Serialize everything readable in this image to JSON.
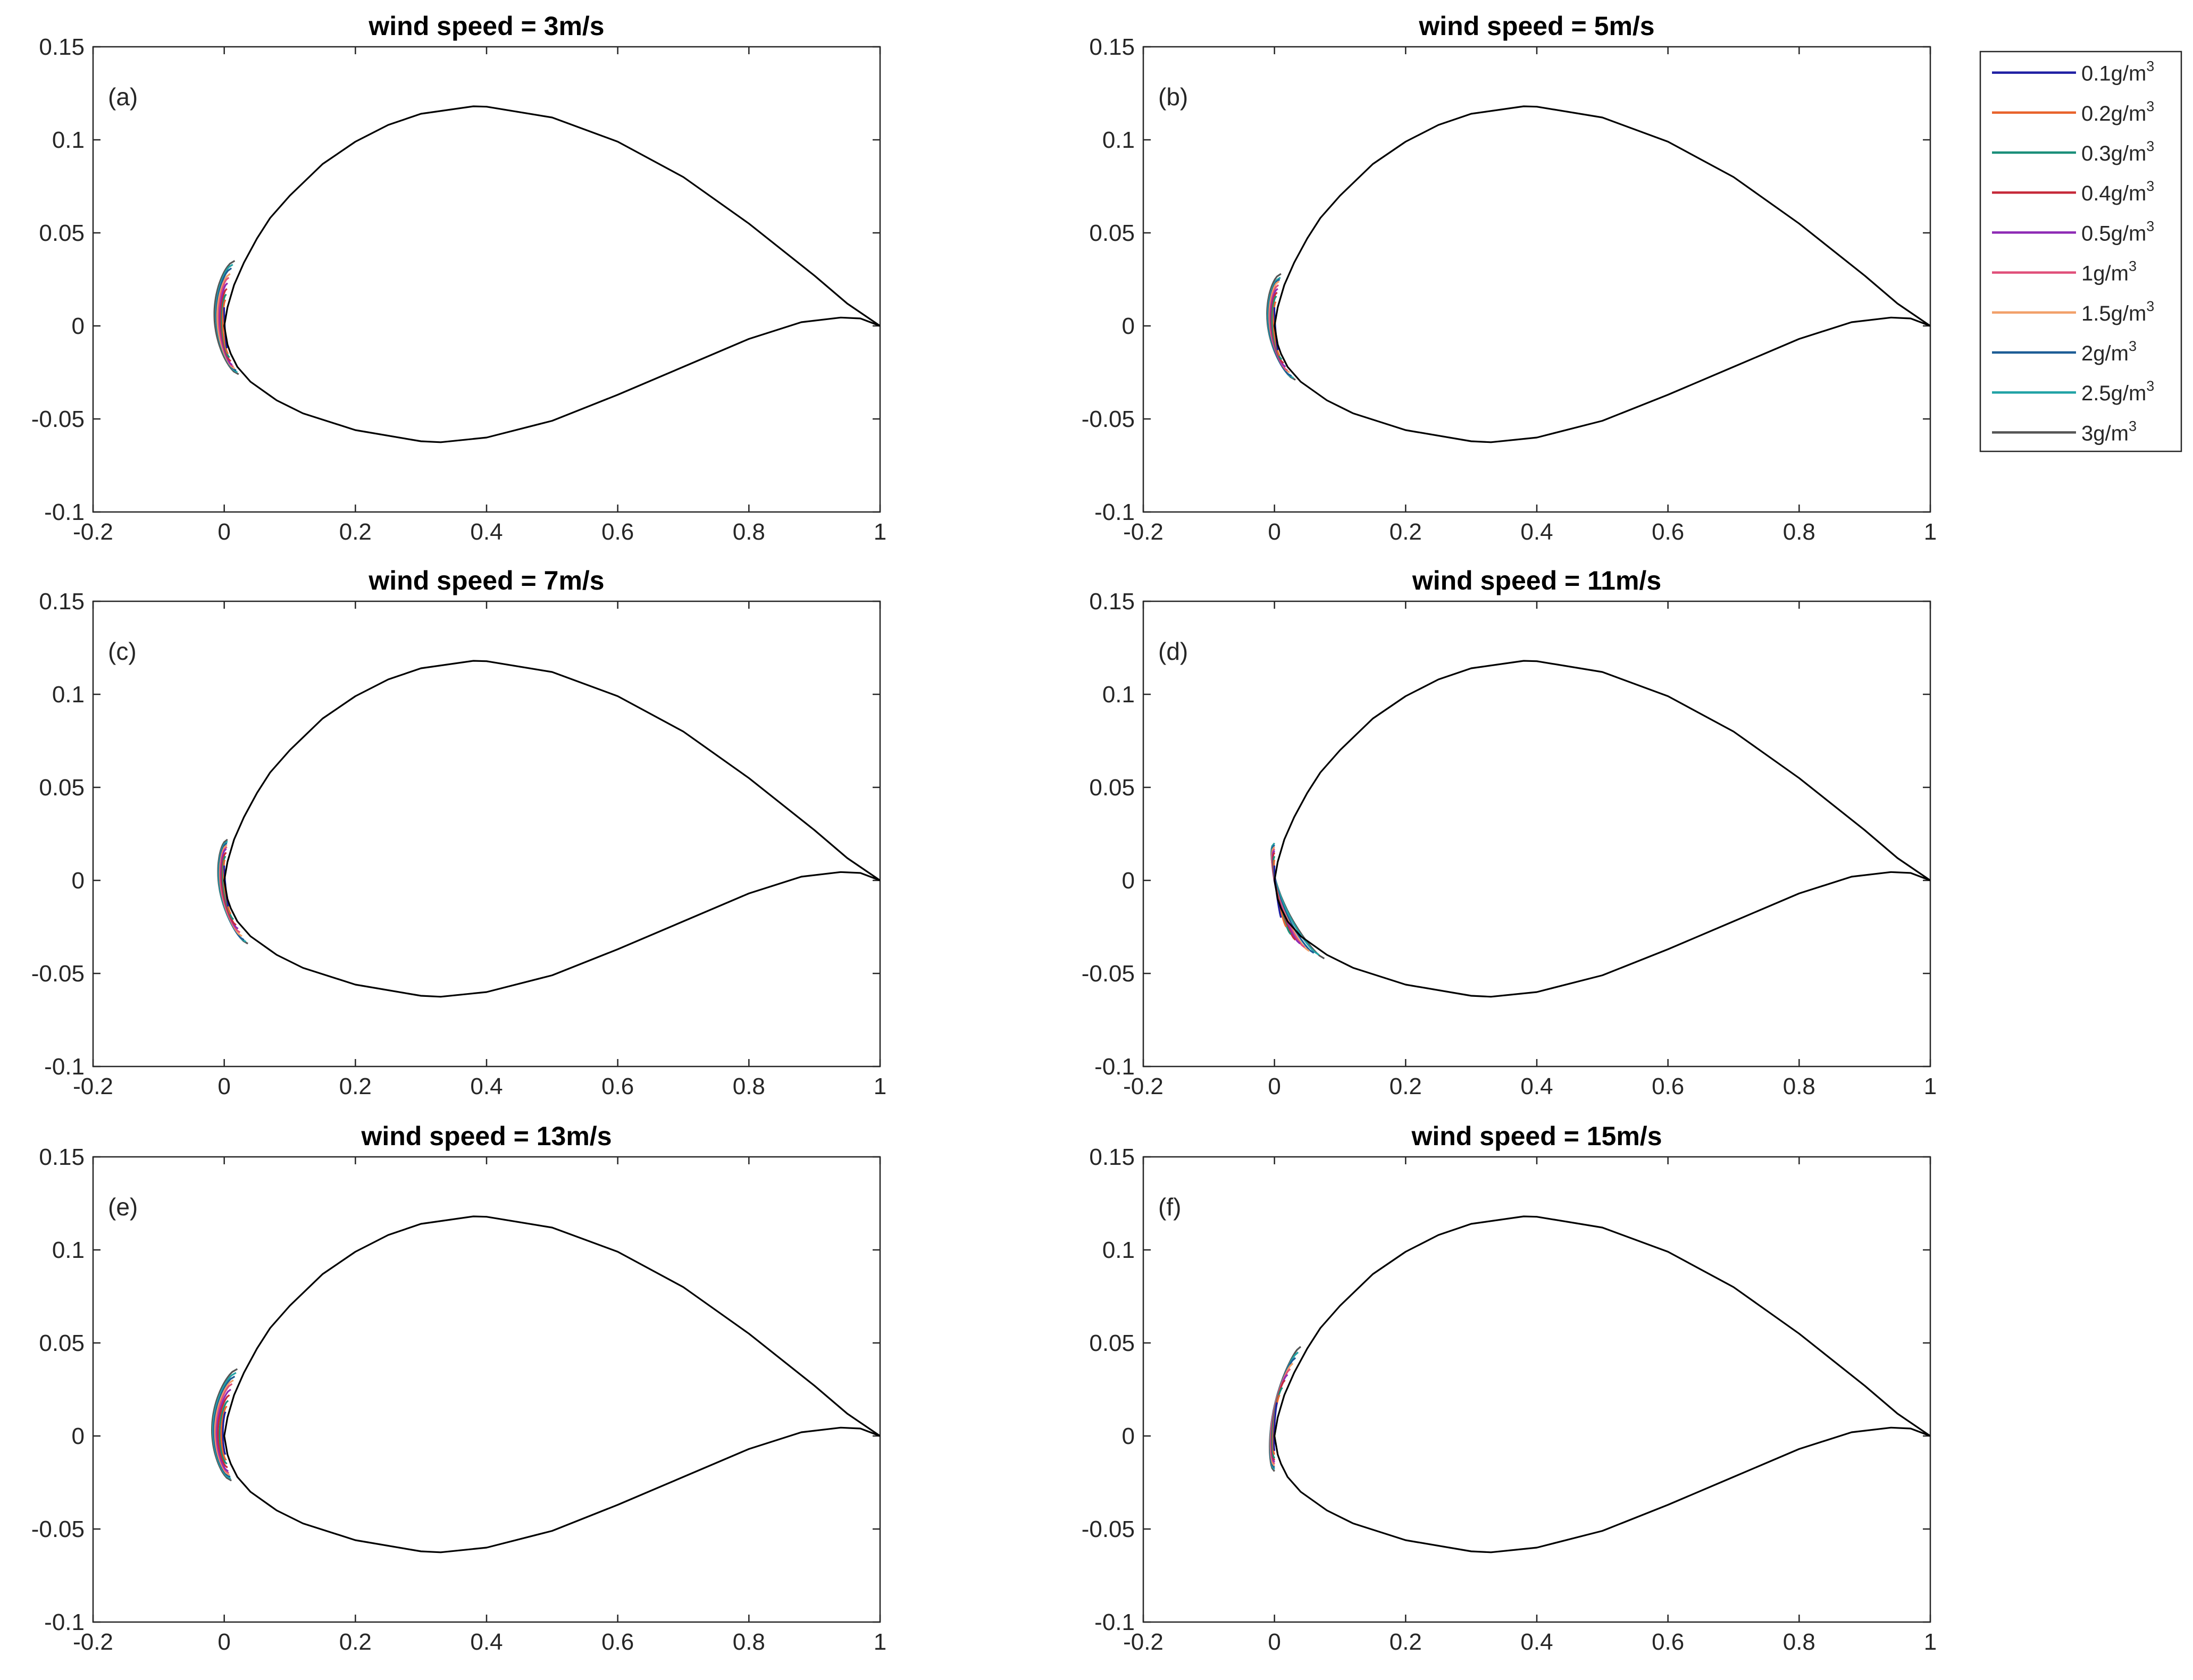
{
  "chart_data": {
    "type": "line",
    "description_units": "x = chordwise coordinate, y = thickness coordinate (normalized by chord)",
    "shared_axes": {
      "xlim": [
        -0.2,
        1
      ],
      "ylim": [
        -0.1,
        0.15
      ],
      "xticks": [
        -0.2,
        0,
        0.2,
        0.4,
        0.6,
        0.8,
        1
      ],
      "xtick_labels": [
        "-0.2",
        "0",
        "0.2",
        "0.4",
        "0.6",
        "0.8",
        "1"
      ],
      "yticks": [
        -0.1,
        -0.05,
        0,
        0.05,
        0.1,
        0.15
      ],
      "ytick_labels": [
        "-0.1",
        "-0.05",
        "0",
        "0.05",
        "0.1",
        "0.15"
      ],
      "xlabel": "",
      "ylabel": "",
      "grid": false
    },
    "airfoil": {
      "upper_x": [
        1.0,
        0.95,
        0.9,
        0.8,
        0.7,
        0.6,
        0.5,
        0.4,
        0.38,
        0.3,
        0.25,
        0.2,
        0.15,
        0.1,
        0.07,
        0.05,
        0.03,
        0.015,
        0.005,
        0.0
      ],
      "upper_y": [
        0.0,
        0.012,
        0.027,
        0.055,
        0.08,
        0.099,
        0.112,
        0.1178,
        0.118,
        0.114,
        0.108,
        0.099,
        0.087,
        0.07,
        0.058,
        0.047,
        0.034,
        0.022,
        0.01,
        0.0
      ],
      "lower_x": [
        0.0,
        0.005,
        0.01,
        0.02,
        0.04,
        0.08,
        0.12,
        0.2,
        0.3,
        0.33,
        0.4,
        0.5,
        0.6,
        0.7,
        0.8,
        0.88,
        0.94,
        0.97,
        1.0
      ],
      "lower_y": [
        0.0,
        -0.01,
        -0.015,
        -0.022,
        -0.03,
        -0.04,
        -0.047,
        -0.056,
        -0.062,
        -0.0625,
        -0.06,
        -0.051,
        -0.037,
        -0.022,
        -0.007,
        0.002,
        0.0045,
        0.004,
        0.0
      ],
      "color": "#000000"
    },
    "legend": {
      "placement": "top-right outside",
      "entries": [
        {
          "label_base": "0.1g/m",
          "sup": "3",
          "color": "#1f1fa3"
        },
        {
          "label_base": "0.2g/m",
          "sup": "3",
          "color": "#e8632c"
        },
        {
          "label_base": "0.3g/m",
          "sup": "3",
          "color": "#1b8f7a"
        },
        {
          "label_base": "0.4g/m",
          "sup": "3",
          "color": "#c62a3a"
        },
        {
          "label_base": "0.5g/m",
          "sup": "3",
          "color": "#8e2bb5"
        },
        {
          "label_base": "1g/m",
          "sup": "3",
          "color": "#e0507a"
        },
        {
          "label_base": "1.5g/m",
          "sup": "3",
          "color": "#f2a06a"
        },
        {
          "label_base": "2g/m",
          "sup": "3",
          "color": "#1d5d96"
        },
        {
          "label_base": "2.5g/m",
          "sup": "3",
          "color": "#22a3a6"
        },
        {
          "label_base": "3g/m",
          "sup": "3",
          "color": "#555555"
        }
      ]
    },
    "panels": [
      {
        "title": "wind speed = 3m/s",
        "tag": "(a)",
        "ice_shapes": {
          "lwc": [
            "0.1",
            "0.2",
            "0.3",
            "0.4",
            "0.5",
            "1",
            "1.5",
            "2",
            "2.5",
            "3"
          ],
          "upper_end": [
            [
              0.0,
              0.01
            ],
            [
              0.002,
              0.014
            ],
            [
              0.003,
              0.017
            ],
            [
              0.004,
              0.02
            ],
            [
              0.005,
              0.023
            ],
            [
              0.007,
              0.026
            ],
            [
              0.009,
              0.028
            ],
            [
              0.011,
              0.031
            ],
            [
              0.013,
              0.033
            ],
            [
              0.016,
              0.035
            ]
          ],
          "lower_end": [
            [
              0.004,
              -0.012
            ],
            [
              0.006,
              -0.015
            ],
            [
              0.008,
              -0.017
            ],
            [
              0.01,
              -0.019
            ],
            [
              0.012,
              -0.021
            ],
            [
              0.014,
              -0.022
            ],
            [
              0.016,
              -0.023
            ],
            [
              0.018,
              -0.024
            ],
            [
              0.02,
              -0.025
            ],
            [
              0.022,
              -0.026
            ]
          ],
          "min_x": [
            -0.001,
            -0.004,
            -0.006,
            -0.008,
            -0.01,
            -0.012,
            -0.014,
            -0.015,
            -0.016,
            -0.018
          ]
        }
      },
      {
        "title": "wind speed = 5m/s",
        "tag": "(b)",
        "ice_shapes": {
          "lwc": [
            "0.1",
            "0.2",
            "0.3",
            "0.4",
            "0.5",
            "1",
            "1.5",
            "2",
            "2.5",
            "3"
          ],
          "upper_end": [
            [
              0.0,
              0.01
            ],
            [
              0.002,
              0.013
            ],
            [
              0.003,
              0.016
            ],
            [
              0.004,
              0.018
            ],
            [
              0.005,
              0.02
            ],
            [
              0.006,
              0.022
            ],
            [
              0.007,
              0.024
            ],
            [
              0.008,
              0.025
            ],
            [
              0.009,
              0.026
            ],
            [
              0.01,
              0.028
            ]
          ],
          "lower_end": [
            [
              0.005,
              -0.013
            ],
            [
              0.008,
              -0.016
            ],
            [
              0.011,
              -0.018
            ],
            [
              0.014,
              -0.02
            ],
            [
              0.017,
              -0.022
            ],
            [
              0.02,
              -0.024
            ],
            [
              0.023,
              -0.025
            ],
            [
              0.026,
              -0.027
            ],
            [
              0.029,
              -0.028
            ],
            [
              0.032,
              -0.029
            ]
          ],
          "min_x": [
            -0.001,
            -0.004,
            -0.007,
            -0.009,
            -0.011,
            -0.013,
            -0.015,
            -0.017,
            -0.019,
            -0.021
          ]
        }
      },
      {
        "title": "wind speed = 7m/s",
        "tag": "(c)",
        "ice_shapes": {
          "lwc": [
            "0.1",
            "0.2",
            "0.3",
            "0.4",
            "0.5",
            "1",
            "1.5",
            "2",
            "2.5",
            "3"
          ],
          "upper_end": [
            [
              0.0,
              0.008
            ],
            [
              0.001,
              0.011
            ],
            [
              0.002,
              0.013
            ],
            [
              0.003,
              0.015
            ],
            [
              0.003,
              0.017
            ],
            [
              0.004,
              0.018
            ],
            [
              0.004,
              0.019
            ],
            [
              0.004,
              0.02
            ],
            [
              0.005,
              0.021
            ],
            [
              0.005,
              0.022
            ]
          ],
          "lower_end": [
            [
              0.006,
              -0.014
            ],
            [
              0.01,
              -0.018
            ],
            [
              0.014,
              -0.021
            ],
            [
              0.018,
              -0.024
            ],
            [
              0.021,
              -0.026
            ],
            [
              0.024,
              -0.028
            ],
            [
              0.027,
              -0.03
            ],
            [
              0.03,
              -0.032
            ],
            [
              0.033,
              -0.033
            ],
            [
              0.036,
              -0.034
            ]
          ],
          "min_x": [
            -0.001,
            -0.004,
            -0.007,
            -0.01,
            -0.012,
            -0.014,
            -0.016,
            -0.018,
            -0.02,
            -0.022
          ]
        }
      },
      {
        "title": "wind speed = 11m/s",
        "tag": "(d)",
        "ice_shapes": {
          "lwc": [
            "0.1",
            "0.2",
            "0.3",
            "0.4",
            "0.5",
            "1",
            "1.5",
            "2",
            "2.5",
            "3"
          ],
          "upper_end": [
            [
              0.0,
              0.008
            ],
            [
              0.0,
              0.011
            ],
            [
              0.0,
              0.013
            ],
            [
              0.0,
              0.015
            ],
            [
              0.0,
              0.016
            ],
            [
              0.0,
              0.017
            ],
            [
              0.0,
              0.018
            ],
            [
              0.0,
              0.019
            ],
            [
              0.0,
              0.02
            ],
            [
              0.0,
              0.02
            ]
          ],
          "lower_end": [
            [
              0.01,
              -0.02
            ],
            [
              0.018,
              -0.025
            ],
            [
              0.025,
              -0.029
            ],
            [
              0.032,
              -0.032
            ],
            [
              0.039,
              -0.034
            ],
            [
              0.046,
              -0.036
            ],
            [
              0.053,
              -0.038
            ],
            [
              0.06,
              -0.039
            ],
            [
              0.068,
              -0.04
            ],
            [
              0.076,
              -0.042
            ]
          ],
          "min_x": [
            -0.002,
            -0.005,
            -0.008,
            -0.011,
            -0.014,
            -0.016,
            -0.019,
            -0.021,
            -0.023,
            -0.025
          ]
        }
      },
      {
        "title": "wind speed = 13m/s",
        "tag": "(e)",
        "ice_shapes": {
          "lwc": [
            "0.1",
            "0.2",
            "0.3",
            "0.4",
            "0.5",
            "1",
            "1.5",
            "2",
            "2.5",
            "3"
          ],
          "upper_end": [
            [
              0.002,
              0.013
            ],
            [
              0.004,
              0.016
            ],
            [
              0.006,
              0.019
            ],
            [
              0.008,
              0.022
            ],
            [
              0.01,
              0.025
            ],
            [
              0.012,
              0.028
            ],
            [
              0.014,
              0.03
            ],
            [
              0.016,
              0.032
            ],
            [
              0.018,
              0.034
            ],
            [
              0.02,
              0.036
            ]
          ],
          "lower_end": [
            [
              0.002,
              -0.01
            ],
            [
              0.003,
              -0.013
            ],
            [
              0.004,
              -0.015
            ],
            [
              0.005,
              -0.017
            ],
            [
              0.006,
              -0.019
            ],
            [
              0.007,
              -0.02
            ],
            [
              0.008,
              -0.021
            ],
            [
              0.009,
              -0.022
            ],
            [
              0.01,
              -0.023
            ],
            [
              0.011,
              -0.024
            ]
          ],
          "min_x": [
            -0.002,
            -0.005,
            -0.008,
            -0.011,
            -0.013,
            -0.015,
            -0.017,
            -0.019,
            -0.021,
            -0.023
          ]
        }
      },
      {
        "title": "wind speed = 15m/s",
        "tag": "(f)",
        "ice_shapes": {
          "lwc": [
            "0.1",
            "0.2",
            "0.3",
            "0.4",
            "0.5",
            "1",
            "1.5",
            "2",
            "2.5",
            "3"
          ],
          "upper_end": [
            [
              0.004,
              0.018
            ],
            [
              0.008,
              0.022
            ],
            [
              0.012,
              0.026
            ],
            [
              0.016,
              0.03
            ],
            [
              0.02,
              0.033
            ],
            [
              0.024,
              0.036
            ],
            [
              0.028,
              0.039
            ],
            [
              0.032,
              0.042
            ],
            [
              0.036,
              0.045
            ],
            [
              0.04,
              0.048
            ]
          ],
          "lower_end": [
            [
              0.0,
              -0.008
            ],
            [
              0.0,
              -0.01
            ],
            [
              0.0,
              -0.012
            ],
            [
              0.0,
              -0.013
            ],
            [
              0.0,
              -0.014
            ],
            [
              0.0,
              -0.015
            ],
            [
              0.0,
              -0.016
            ],
            [
              0.0,
              -0.017
            ],
            [
              0.0,
              -0.018
            ],
            [
              0.0,
              -0.019
            ]
          ],
          "min_x": [
            -0.002,
            -0.005,
            -0.008,
            -0.01,
            -0.012,
            -0.014,
            -0.016,
            -0.018,
            -0.019,
            -0.021
          ]
        }
      }
    ]
  }
}
